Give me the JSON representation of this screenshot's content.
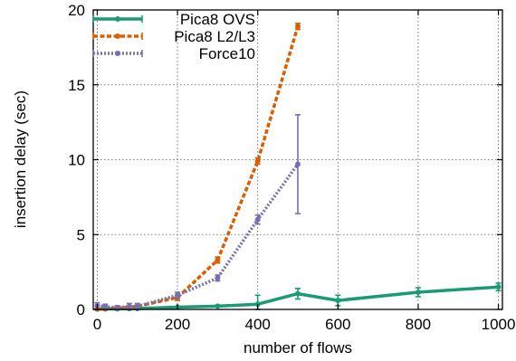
{
  "chart_data": {
    "type": "line",
    "xlabel": "number of flows",
    "ylabel": "insertion delay (sec)",
    "xlim": [
      -10,
      1010
    ],
    "ylim": [
      0,
      20
    ],
    "xticks": [
      0,
      200,
      400,
      600,
      800,
      1000
    ],
    "yticks": [
      0,
      5,
      10,
      15,
      20
    ],
    "grid": true,
    "legend": "top-left",
    "series": [
      {
        "name": "Pica8 OVS",
        "color": "#1a9b75",
        "style": "solid",
        "x": [
          0,
          20,
          50,
          80,
          100,
          200,
          300,
          400,
          500,
          600,
          800,
          1000
        ],
        "y": [
          0.02,
          0.03,
          0.04,
          0.05,
          0.06,
          0.15,
          0.22,
          0.35,
          1.05,
          0.6,
          1.15,
          1.5
        ],
        "err": [
          0.02,
          0.02,
          0.02,
          0.02,
          0.02,
          0.05,
          0.05,
          0.6,
          0.35,
          0.35,
          0.3,
          0.25
        ]
      },
      {
        "name": "Pica8 L2/L3",
        "color": "#d95f02",
        "style": "dashed",
        "x": [
          0,
          20,
          50,
          80,
          100,
          200,
          300,
          400,
          500
        ],
        "y": [
          0.02,
          0.05,
          0.1,
          0.15,
          0.2,
          0.8,
          3.3,
          9.9,
          18.9
        ],
        "err": [
          0.02,
          0.03,
          0.05,
          0.1,
          0.1,
          0.2,
          0.2,
          0.2,
          0.2
        ]
      },
      {
        "name": "Force10",
        "color": "#7570b3",
        "style": "dotted",
        "x": [
          0,
          20,
          50,
          80,
          100,
          200,
          300,
          400,
          500
        ],
        "y": [
          0.25,
          0.2,
          0.1,
          0.2,
          0.2,
          0.95,
          2.1,
          6.0,
          9.7
        ],
        "err": [
          0.2,
          0.15,
          0.15,
          0.2,
          0.2,
          0.2,
          0.2,
          0.3,
          3.3
        ]
      }
    ]
  }
}
